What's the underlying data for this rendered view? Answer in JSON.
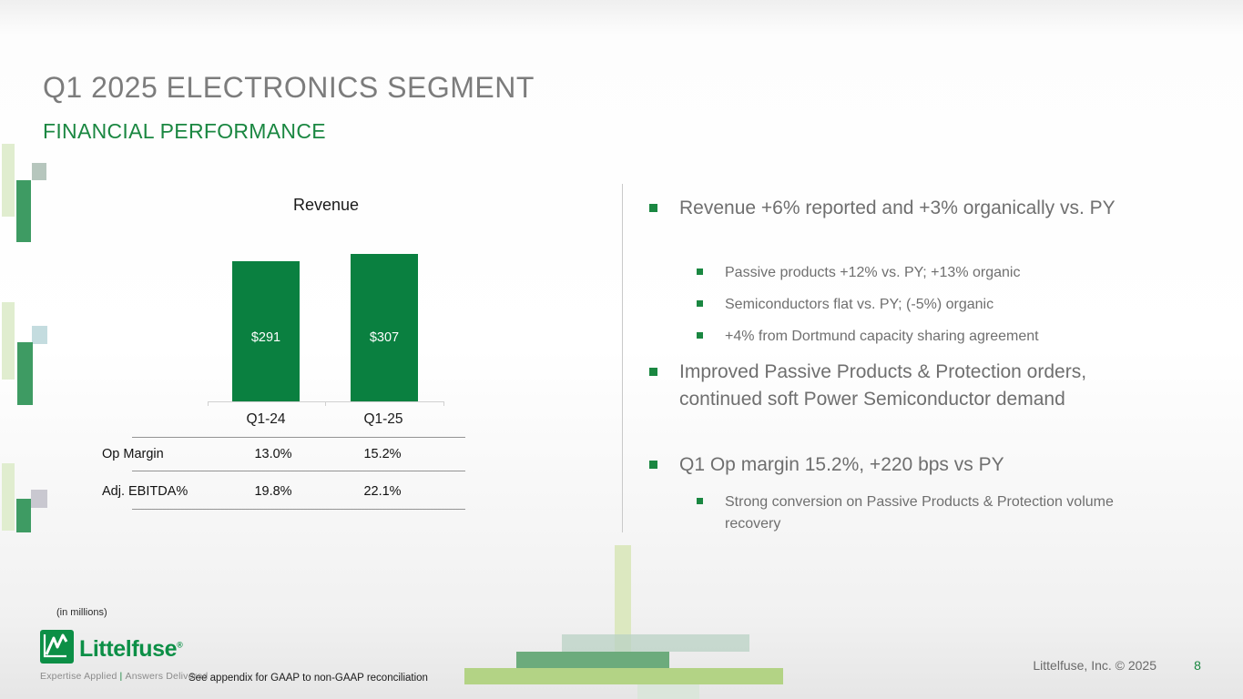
{
  "slide": {
    "title": "Q1 2025 ELECTRONICS SEGMENT",
    "subtitle": "FINANCIAL PERFORMANCE",
    "page_number": "8",
    "copyright": "Littelfuse, Inc. © 2025",
    "footnote_units": "(in millions)",
    "footnote_gaap": "See appendix for GAAP to non-GAAP reconciliation"
  },
  "logo": {
    "wordmark": "Littelfuse",
    "registered_mark": "®",
    "tagline_left": "Expertise Applied",
    "tagline_separator": "|",
    "tagline_right": "Answers Delivered"
  },
  "chart_data": {
    "type": "bar",
    "title": "Revenue",
    "categories": [
      "Q1-24",
      "Q1-25"
    ],
    "values": [
      291,
      307
    ],
    "value_labels": [
      "$291",
      "$307"
    ],
    "units": "USD millions",
    "bar_color": "#0a8040",
    "ylim": [
      0,
      330
    ],
    "grid": false,
    "legend": false
  },
  "metrics_table": {
    "rows": [
      {
        "label": "Op Margin",
        "q1_24": "13.0%",
        "q1_25": "15.2%"
      },
      {
        "label": "Adj. EBITDA%",
        "q1_24": "19.8%",
        "q1_25": "22.1%"
      }
    ]
  },
  "bullets": [
    {
      "text": "Revenue +6% reported and +3% organically vs. PY",
      "children": [
        "Passive products +12% vs. PY; +13% organic",
        "Semiconductors flat vs. PY; (-5%) organic",
        "+4% from Dortmund capacity sharing agreement"
      ]
    },
    {
      "text": "Improved Passive Products & Protection orders, continued soft Power Semiconductor demand",
      "children": []
    },
    {
      "text": "Q1 Op margin 15.2%, +220 bps vs PY",
      "children": [
        "Strong conversion on Passive Products & Protection volume recovery"
      ]
    }
  ],
  "colors": {
    "accent_green": "#1a8741",
    "bar_green": "#0a8040",
    "title_gray": "#7c7c7c",
    "body_gray": "#6f6f6f"
  }
}
